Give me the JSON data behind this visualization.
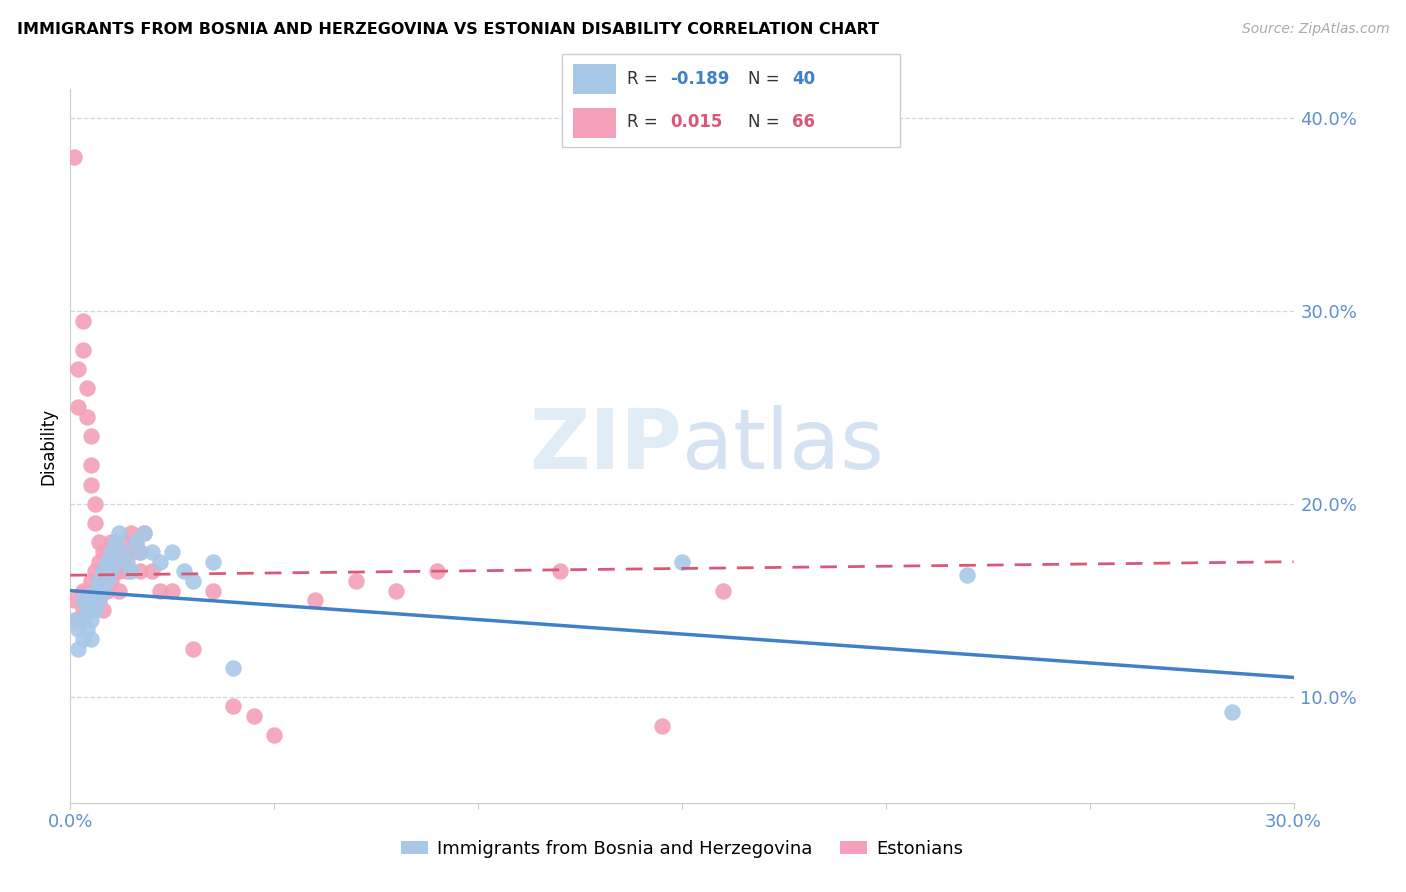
{
  "title": "IMMIGRANTS FROM BOSNIA AND HERZEGOVINA VS ESTONIAN DISABILITY CORRELATION CHART",
  "source": "Source: ZipAtlas.com",
  "ylabel": "Disability",
  "watermark_zip": "ZIP",
  "watermark_atlas": "atlas",
  "legend_blue_r": "-0.189",
  "legend_blue_n": "40",
  "legend_pink_r": "0.015",
  "legend_pink_n": "66",
  "legend_blue_label": "Immigrants from Bosnia and Herzegovina",
  "legend_pink_label": "Estonians",
  "xlim": [
    0.0,
    0.3
  ],
  "ylim": [
    0.045,
    0.415
  ],
  "yticks": [
    0.1,
    0.2,
    0.3,
    0.4
  ],
  "ytick_labels": [
    "10.0%",
    "20.0%",
    "30.0%",
    "40.0%"
  ],
  "xticks": [
    0.0,
    0.05,
    0.1,
    0.15,
    0.2,
    0.25,
    0.3
  ],
  "xtick_labels": [
    "0.0%",
    "",
    "",
    "",
    "",
    "",
    "30.0%"
  ],
  "blue_color": "#a8c8e8",
  "pink_color": "#f4a0b8",
  "line_blue_color": "#4080c8",
  "line_pink_color": "#d85878",
  "tick_color": "#6090d0",
  "grid_color": "#d0d8e8",
  "blue_scatter_x": [
    0.001,
    0.002,
    0.002,
    0.003,
    0.003,
    0.003,
    0.004,
    0.004,
    0.005,
    0.005,
    0.005,
    0.006,
    0.006,
    0.007,
    0.007,
    0.008,
    0.008,
    0.009,
    0.009,
    0.01,
    0.01,
    0.011,
    0.011,
    0.012,
    0.013,
    0.014,
    0.015,
    0.016,
    0.017,
    0.018,
    0.02,
    0.022,
    0.025,
    0.028,
    0.03,
    0.035,
    0.04,
    0.15,
    0.22,
    0.285
  ],
  "blue_scatter_y": [
    0.14,
    0.135,
    0.125,
    0.15,
    0.14,
    0.13,
    0.145,
    0.135,
    0.15,
    0.14,
    0.13,
    0.155,
    0.145,
    0.16,
    0.15,
    0.165,
    0.155,
    0.17,
    0.16,
    0.175,
    0.165,
    0.18,
    0.17,
    0.185,
    0.175,
    0.17,
    0.165,
    0.18,
    0.175,
    0.185,
    0.175,
    0.17,
    0.175,
    0.165,
    0.16,
    0.17,
    0.115,
    0.17,
    0.163,
    0.092
  ],
  "pink_scatter_x": [
    0.001,
    0.001,
    0.002,
    0.002,
    0.002,
    0.003,
    0.003,
    0.003,
    0.003,
    0.004,
    0.004,
    0.004,
    0.004,
    0.005,
    0.005,
    0.005,
    0.005,
    0.005,
    0.006,
    0.006,
    0.006,
    0.006,
    0.007,
    0.007,
    0.007,
    0.007,
    0.008,
    0.008,
    0.008,
    0.008,
    0.009,
    0.009,
    0.009,
    0.01,
    0.01,
    0.01,
    0.011,
    0.011,
    0.012,
    0.012,
    0.012,
    0.013,
    0.013,
    0.014,
    0.014,
    0.015,
    0.015,
    0.016,
    0.017,
    0.017,
    0.018,
    0.02,
    0.022,
    0.025,
    0.03,
    0.035,
    0.04,
    0.045,
    0.05,
    0.06,
    0.07,
    0.08,
    0.09,
    0.12,
    0.145,
    0.16
  ],
  "pink_scatter_y": [
    0.38,
    0.15,
    0.27,
    0.25,
    0.14,
    0.295,
    0.28,
    0.155,
    0.145,
    0.26,
    0.245,
    0.155,
    0.145,
    0.235,
    0.22,
    0.21,
    0.16,
    0.15,
    0.2,
    0.19,
    0.165,
    0.155,
    0.18,
    0.17,
    0.16,
    0.15,
    0.175,
    0.165,
    0.155,
    0.145,
    0.175,
    0.165,
    0.155,
    0.18,
    0.17,
    0.16,
    0.175,
    0.165,
    0.175,
    0.165,
    0.155,
    0.18,
    0.17,
    0.175,
    0.165,
    0.185,
    0.175,
    0.18,
    0.175,
    0.165,
    0.185,
    0.165,
    0.155,
    0.155,
    0.125,
    0.155,
    0.095,
    0.09,
    0.08,
    0.15,
    0.16,
    0.155,
    0.165,
    0.165,
    0.085,
    0.155
  ]
}
